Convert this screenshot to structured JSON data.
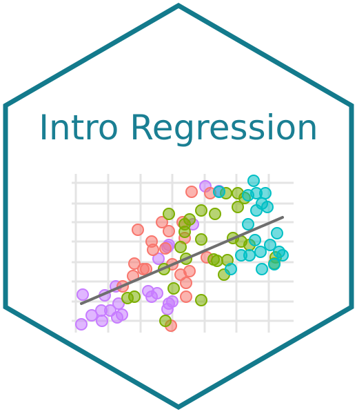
{
  "title": "Intro Regression"
}
